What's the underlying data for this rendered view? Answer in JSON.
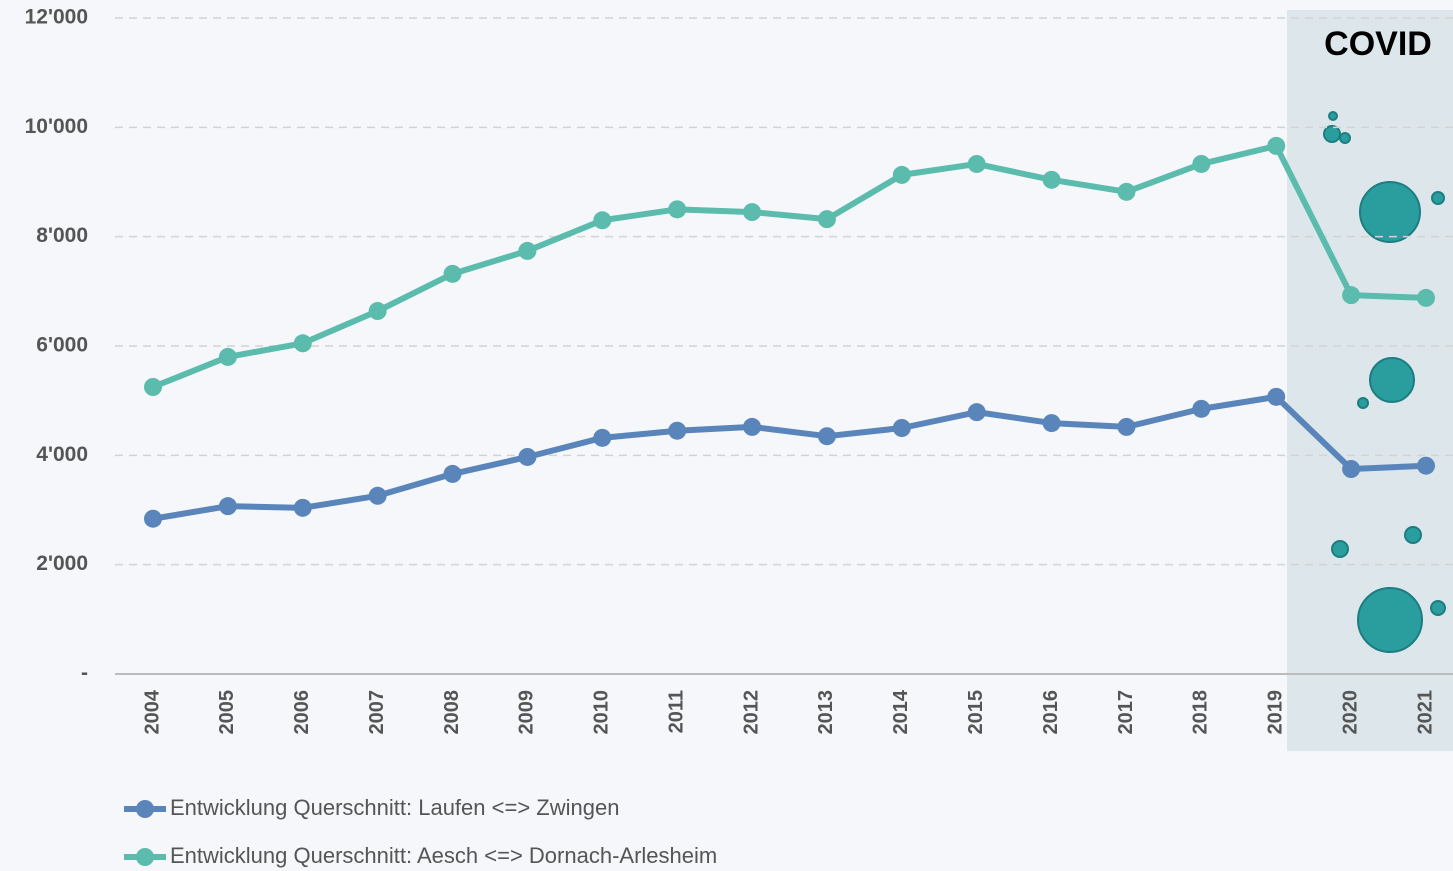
{
  "chart_data": {
    "type": "line",
    "annotation": "COVID",
    "categories": [
      "2004",
      "2005",
      "2006",
      "2007",
      "2008",
      "2009",
      "2010",
      "2011",
      "2012",
      "2013",
      "2014",
      "2015",
      "2016",
      "2017",
      "2018",
      "2019",
      "2020",
      "2021"
    ],
    "series": [
      {
        "name": "Entwicklung Querschnitt: Laufen <=> Zwingen",
        "color": "#5a85bb",
        "values": [
          2840,
          3070,
          3040,
          3260,
          3660,
          3970,
          4320,
          4450,
          4520,
          4350,
          4500,
          4790,
          4590,
          4520,
          4850,
          5070,
          3750,
          3810
        ]
      },
      {
        "name": "Entwicklung Querschnitt: Aesch <=> Dornach-Arlesheim",
        "color": "#5bbcad",
        "values": [
          5250,
          5800,
          6050,
          6640,
          7320,
          7740,
          8300,
          8500,
          8450,
          8320,
          9130,
          9330,
          9040,
          8820,
          9330,
          9660,
          6930,
          6880
        ]
      }
    ],
    "ylim": [
      0,
      12000
    ],
    "yticks": [
      {
        "value": 0,
        "label": "-"
      },
      {
        "value": 2000,
        "label": "2'000"
      },
      {
        "value": 4000,
        "label": "4'000"
      },
      {
        "value": 6000,
        "label": "6'000"
      },
      {
        "value": 8000,
        "label": "8'000"
      },
      {
        "value": 10000,
        "label": "10'000"
      },
      {
        "value": 12000,
        "label": "12'000"
      }
    ],
    "grid": true
  }
}
